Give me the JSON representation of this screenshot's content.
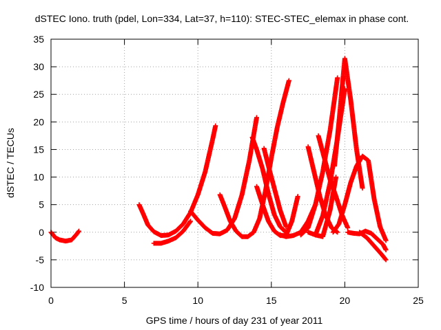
{
  "chart_data": {
    "type": "scatter",
    "title": "dSTEC Iono. truth (pdel, Lon=334, Lat=37, h=110): STEC-STEC_elemax in phase cont.",
    "xlabel": "GPS time / hours of day 231 of year 2011",
    "ylabel": "dSTEC  / TECUs",
    "xlim": [
      0,
      25
    ],
    "ylim": [
      -10,
      35
    ],
    "xticks": [
      0,
      5,
      10,
      15,
      20,
      25
    ],
    "yticks": [
      -10,
      -5,
      0,
      5,
      10,
      15,
      20,
      25,
      30,
      35
    ],
    "grid": true,
    "legend": "none",
    "marker": "+",
    "color": "#ff0000",
    "series": [
      {
        "x": [
          0.0,
          0.3,
          0.6,
          1.0,
          1.4,
          1.7,
          1.9
        ],
        "y": [
          0.0,
          -1.0,
          -1.4,
          -1.6,
          -1.4,
          -0.5,
          0.2
        ]
      },
      {
        "x": [
          6.0,
          6.3,
          6.6,
          7.0,
          7.5,
          8.0,
          8.5,
          9.0,
          9.5,
          10.0,
          10.5,
          11.0,
          11.2
        ],
        "y": [
          5.0,
          3.2,
          1.3,
          0.1,
          -0.6,
          -0.5,
          0.2,
          1.5,
          3.6,
          6.8,
          11.0,
          16.8,
          19.3
        ]
      },
      {
        "x": [
          7.0,
          7.5,
          8.0,
          8.5,
          9.0,
          9.5
        ],
        "y": [
          -2.0,
          -2.0,
          -1.6,
          -1.0,
          0.2,
          2.0
        ]
      },
      {
        "x": [
          9.5,
          10.0,
          10.5,
          11.0,
          11.5,
          12.0,
          12.5,
          13.0,
          13.5,
          14.0
        ],
        "y": [
          3.8,
          2.2,
          0.8,
          -0.2,
          -0.3,
          0.4,
          2.5,
          6.8,
          13.0,
          20.8
        ]
      },
      {
        "x": [
          11.5,
          11.8,
          12.2,
          12.6,
          13.0,
          13.4,
          13.8
        ],
        "y": [
          6.8,
          4.8,
          2.0,
          0.2,
          -0.8,
          -0.8,
          0.0
        ]
      },
      {
        "x": [
          13.8,
          14.2,
          14.6,
          15.0,
          15.4,
          15.8,
          16.2
        ],
        "y": [
          0.0,
          2.5,
          7.5,
          13.5,
          19.0,
          23.5,
          27.5
        ]
      },
      {
        "x": [
          13.7,
          14.0,
          14.4,
          14.8,
          15.2,
          15.6,
          16.0
        ],
        "y": [
          17.2,
          15.0,
          11.5,
          7.0,
          3.2,
          1.0,
          0.0
        ]
      },
      {
        "x": [
          14.5,
          14.8,
          15.2,
          15.6,
          16.0
        ],
        "y": [
          15.2,
          12.0,
          8.0,
          4.0,
          1.0
        ]
      },
      {
        "x": [
          14.0,
          14.4,
          14.8,
          15.2,
          15.6,
          16.0,
          16.4,
          16.8
        ],
        "y": [
          8.3,
          5.0,
          2.0,
          0.2,
          -0.6,
          -0.6,
          2.0,
          6.5
        ]
      },
      {
        "x": [
          15.5,
          16.0,
          16.5,
          17.0,
          17.5,
          18.0
        ],
        "y": [
          -0.4,
          -0.8,
          -0.6,
          0.0,
          2.0,
          5.0
        ]
      },
      {
        "x": [
          17.5,
          17.9,
          18.3,
          18.7,
          19.1,
          19.5
        ],
        "y": [
          15.5,
          11.0,
          6.5,
          3.0,
          0.8,
          0.0
        ]
      },
      {
        "x": [
          18.2,
          18.6,
          19.0,
          19.4,
          19.8,
          20.2
        ],
        "y": [
          17.5,
          13.5,
          9.5,
          6.5,
          3.2,
          0.8
        ]
      },
      {
        "x": [
          17.5,
          18.0,
          18.5,
          19.0,
          19.4
        ],
        "y": [
          0.0,
          -0.5,
          -0.8,
          4.0,
          10.0
        ]
      },
      {
        "x": [
          17.0,
          17.5,
          18.0,
          18.5,
          19.0,
          19.5
        ],
        "y": [
          -0.5,
          0.8,
          5.0,
          11.0,
          18.5,
          28.0
        ]
      },
      {
        "x": [
          18.0,
          18.5,
          19.0,
          19.5,
          20.0
        ],
        "y": [
          -0.5,
          3.0,
          9.0,
          17.0,
          26.0
        ]
      },
      {
        "x": [
          19.3,
          19.6,
          20.0,
          20.4,
          20.8,
          21.2
        ],
        "y": [
          12.0,
          20.0,
          31.5,
          24.0,
          15.0,
          8.0
        ]
      },
      {
        "x": [
          19.2,
          19.6,
          20.0,
          20.4,
          20.8,
          21.2,
          21.6,
          22.0,
          22.4,
          22.8
        ],
        "y": [
          0.0,
          1.5,
          5.0,
          9.0,
          12.0,
          13.8,
          13.0,
          6.0,
          1.0,
          -1.5
        ]
      },
      {
        "x": [
          20.2,
          20.6,
          21.0,
          21.4,
          21.8,
          22.2,
          22.6,
          22.8
        ],
        "y": [
          0.0,
          -0.2,
          -0.3,
          0.2,
          -0.2,
          -1.2,
          -2.2,
          -3.2
        ]
      },
      {
        "x": [
          21.0,
          21.5,
          22.0,
          22.5,
          22.8
        ],
        "y": [
          0.0,
          -1.0,
          -2.5,
          -4.0,
          -5.0
        ]
      }
    ]
  }
}
